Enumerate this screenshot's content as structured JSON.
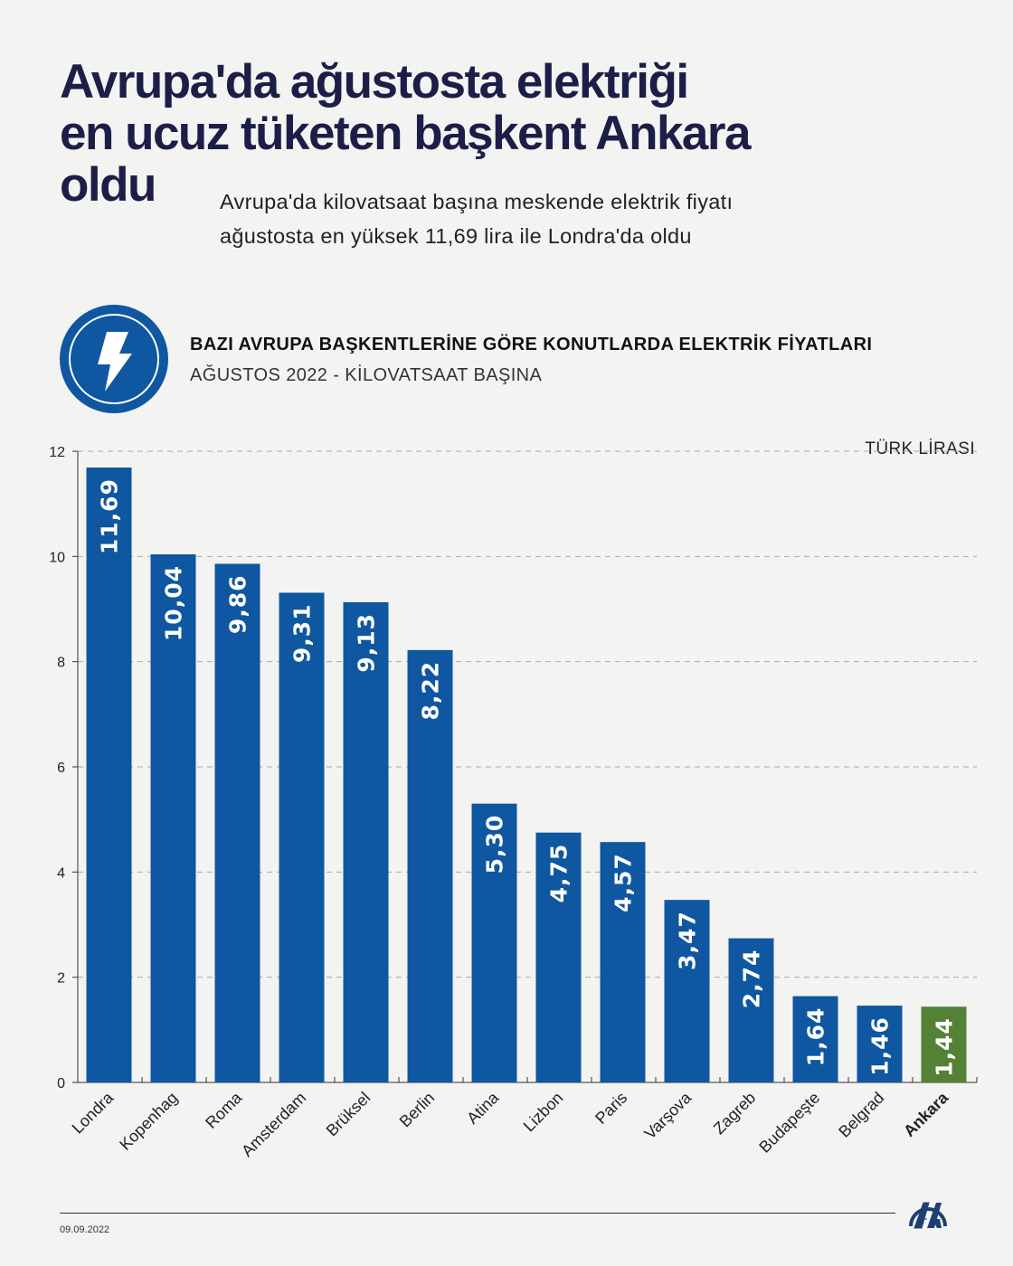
{
  "header": {
    "title_lines": [
      "Avrupa'da ağustosta elektriği",
      "en ucuz tüketen başkent Ankara",
      "oldu"
    ],
    "subtitle": "Avrupa'da kilovatsaat başına meskende elektrik fiyatı ağustosta en yüksek 11,69 lira ile Londra'da oldu"
  },
  "chart_header": {
    "icon": "lightning-bolt-icon",
    "title": "BAZI AVRUPA BAŞKENTLERİNE GÖRE KONUTLARDA ELEKTRİK FİYATLARI",
    "subtitle": "AĞUSTOS 2022 - KİLOVATSAAT BAŞINA"
  },
  "chart_data": {
    "type": "bar",
    "unit_label": "TÜRK LİRASI",
    "categories": [
      "Londra",
      "Kopenhag",
      "Roma",
      "Amsterdam",
      "Brüksel",
      "Berlin",
      "Atina",
      "Lizbon",
      "Paris",
      "Varşova",
      "Zagreb",
      "Budapeşte",
      "Belgrad",
      "Ankara"
    ],
    "values": [
      11.69,
      10.04,
      9.86,
      9.31,
      9.13,
      8.22,
      5.3,
      4.75,
      4.57,
      3.47,
      2.74,
      1.64,
      1.46,
      1.44
    ],
    "value_labels": [
      "11,69",
      "10,04",
      "9,86",
      "9,31",
      "9,13",
      "8,22",
      "5,30",
      "4,75",
      "4,57",
      "3,47",
      "2,74",
      "1,64",
      "1,46",
      "1,44"
    ],
    "highlight": "Ankara",
    "ylim": [
      0,
      12
    ],
    "yticks": [
      0,
      2,
      4,
      6,
      8,
      10,
      12
    ],
    "grid": true,
    "colors": {
      "bar": "#0f57a0",
      "highlight": "#538135"
    }
  },
  "footer": {
    "date": "09.09.2022",
    "logo": "AA"
  }
}
